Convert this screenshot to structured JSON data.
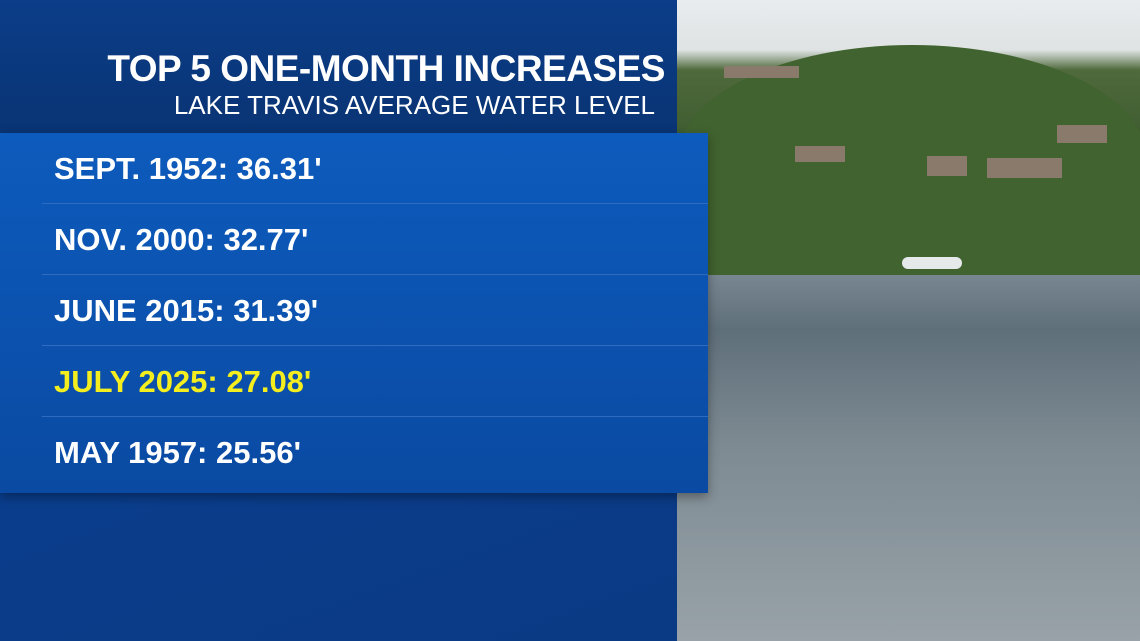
{
  "header": {
    "title": "TOP 5 ONE-MONTH INCREASES",
    "subtitle": "LAKE TRAVIS AVERAGE WATER LEVEL"
  },
  "rows": [
    "SEPT. 1952: 36.31'",
    "NOV. 2000: 32.77'",
    "JUNE 2015: 31.39'",
    "JULY 2025: 27.08'",
    "MAY 1957: 25.56'"
  ]
}
